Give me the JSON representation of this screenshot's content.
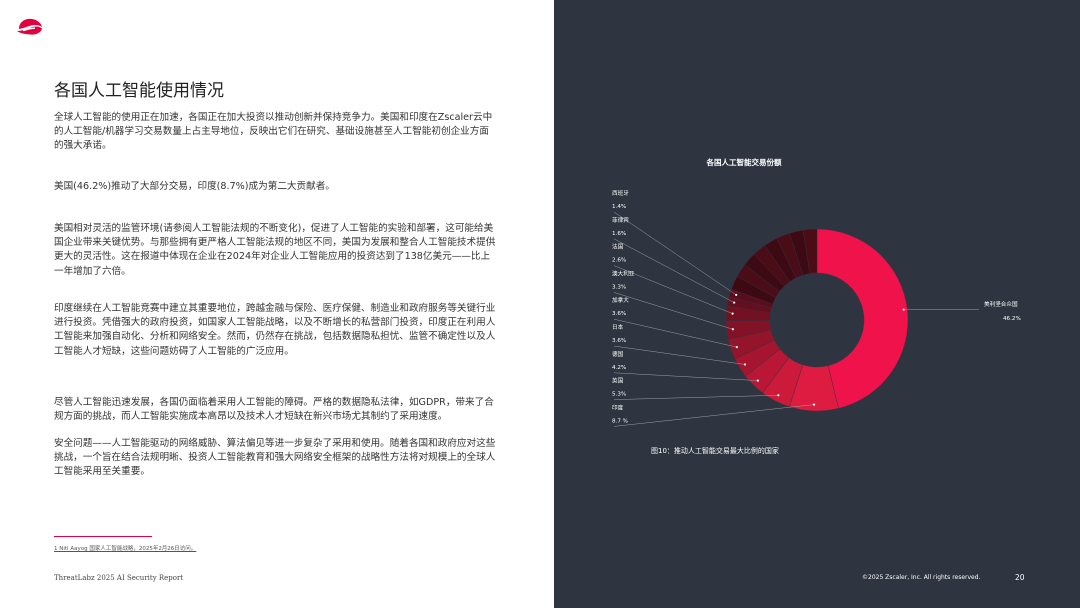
{
  "brand": {
    "logo_name": "zscaler-logo-icon",
    "accent_color": "#e3003e"
  },
  "page": {
    "title": "各国人工智能使用情况",
    "paragraphs": [
      "全球人工智能的使用正在加速，各国正在加大投资以推动创新并保持竞争力。美国和印度在Zscaler云中的人工智能/机器学习交易数量上占主导地位，反映出它们在研究、基础设施甚至人工智能初创企业方面的强大承诺。",
      "美国(46.2%)推动了大部分交易，印度(8.7%)成为第二大贡献者。",
      "美国相对灵活的监管环境(请参阅人工智能法规的不断变化)，促进了人工智能的实验和部署，这可能给美国企业带来关键优势。与那些拥有更严格人工智能法规的地区不同，美国为发展和整合人工智能技术提供更大的灵活性。这在报道中体现在企业在2024年对企业人工智能应用的投资达到了138亿美元——比上一年增加了六倍。",
      "印度继续在人工智能竞赛中建立其重要地位，跨越金融与保险、医疗保健、制造业和政府服务等关键行业进行投资。凭借强大的政府投资，如国家人工智能战略，以及不断增长的私营部门投资，印度正在利用人工智能来加强自动化、分析和网络安全。然而，仍然存在挑战，包括数据隐私担忧、监管不确定性以及人工智能人才短缺，这些问题妨碍了人工智能的广泛应用。",
      "尽管人工智能迅速发展，各国仍面临着采用人工智能的障碍。严格的数据隐私法律，如GDPR，带来了合规方面的挑战，而人工智能实施成本高昂以及技术人才短缺在新兴市场尤其制约了采用速度。",
      "安全问题——人工智能驱动的网络威胁、算法偏见等进一步复杂了采用和使用。随着各国和政府应对这些挑战，一个旨在结合法规明晰、投资人工智能教育和强大网络安全框架的战略性方法将对规模上的全球人工智能采用至关重要。"
    ],
    "footnote": "1 Niti Aayog 国家人工智能战略，2025年2月26日访问。",
    "footer_left": "ThreatLabz 2025 AI Security Report",
    "footer_right": "©2025 Zscaler, Inc. All rights reserved.",
    "page_number": "20"
  },
  "chart_data": {
    "type": "pie",
    "donut": true,
    "title": "各国人工智能交易份额",
    "caption": "图10：推动人工智能交易最大比例的国家",
    "main_slice": {
      "label": "美利坚合众国",
      "value_label": "46.2%",
      "value": 46.2,
      "color": "#f0124b"
    },
    "slices": [
      {
        "label": "西班牙",
        "value_label": "1.4%",
        "value": 1.4,
        "color": "#5a0d1c"
      },
      {
        "label": "菲律宾",
        "value_label": "1.6%",
        "value": 1.6,
        "color": "#650e1f"
      },
      {
        "label": "法国",
        "value_label": "2.6%",
        "value": 2.6,
        "color": "#731022"
      },
      {
        "label": "澳大利亚",
        "value_label": "3.3%",
        "value": 3.3,
        "color": "#821226"
      },
      {
        "label": "加拿大",
        "value_label": "3.6%",
        "value": 3.6,
        "color": "#93142b"
      },
      {
        "label": "日本",
        "value_label": "3.6%",
        "value": 3.6,
        "color": "#a61530"
      },
      {
        "label": "德国",
        "value_label": "4.2%",
        "value": 4.2,
        "color": "#b91735"
      },
      {
        "label": "英国",
        "value_label": "5.3%",
        "value": 5.3,
        "color": "#cc1a3b"
      },
      {
        "label": "印度",
        "value_label": "8.7 %",
        "value": 8.7,
        "color": "#de1c41"
      }
    ],
    "other_share": 19.5,
    "other_colors": [
      "#3d0a13",
      "#4a0c17"
    ]
  }
}
